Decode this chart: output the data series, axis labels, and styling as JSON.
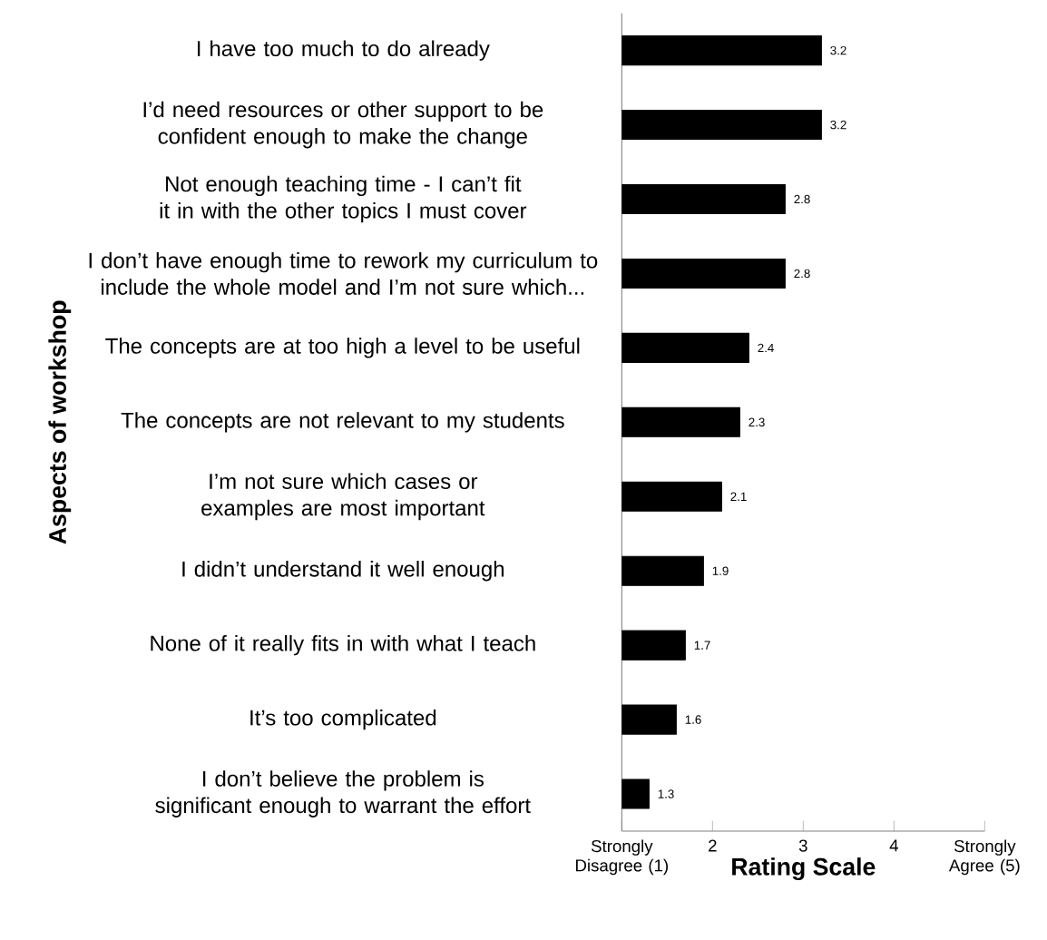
{
  "chart_data": {
    "type": "bar",
    "orientation": "horizontal",
    "xlabel": "Rating Scale",
    "ylabel": "Aspects of workshop",
    "categories": [
      "I have too much to do already",
      "I’d need resources or other support to be confident enough to make the change",
      "Not enough teaching time - I can’t fit it in with the other topics I must cover",
      "I don’t have enough time to rework my curriculum to include the whole model and I’m not sure which...",
      "The concepts are at too high a level to be useful",
      "The concepts are not relevant to my students",
      "I’m not sure which cases or examples are most important",
      "I didn’t understand it well enough",
      "None of it really fits in with what I teach",
      "It’s too complicated",
      "I don’t believe the problem is significant enough to warrant the effort"
    ],
    "values": [
      3.2,
      3.2,
      2.8,
      2.8,
      2.4,
      2.3,
      2.1,
      1.9,
      1.7,
      1.6,
      1.3
    ],
    "color": "#000000",
    "data_labels": true,
    "xlim": [
      1,
      5
    ],
    "xticks": [
      {
        "value": 1,
        "label": "Strongly Disagree (1)"
      },
      2,
      3,
      4,
      {
        "value": 5,
        "label": "Strongly Agree (5)"
      }
    ]
  }
}
